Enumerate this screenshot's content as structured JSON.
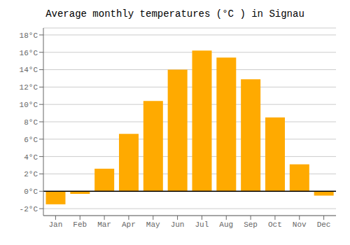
{
  "chart_data": {
    "type": "bar",
    "title": "Average monthly temperatures (°C ) in Signau",
    "categories": [
      "Jan",
      "Feb",
      "Mar",
      "Apr",
      "May",
      "Jun",
      "Jul",
      "Aug",
      "Sep",
      "Oct",
      "Nov",
      "Dec"
    ],
    "values": [
      -1.5,
      -0.3,
      2.6,
      6.6,
      10.4,
      14.0,
      16.2,
      15.4,
      12.9,
      8.5,
      3.1,
      -0.5
    ],
    "color": "#FFAA00",
    "ylim": [
      -2.8,
      18.8
    ],
    "yticks": [
      {
        "value": -2,
        "label": "-2°C"
      },
      {
        "value": 0,
        "label": "0°C"
      },
      {
        "value": 2,
        "label": "2°C"
      },
      {
        "value": 4,
        "label": "4°C"
      },
      {
        "value": 6,
        "label": "6°C"
      },
      {
        "value": 8,
        "label": "8°C"
      },
      {
        "value": 10,
        "label": "10°C"
      },
      {
        "value": 12,
        "label": "12°C"
      },
      {
        "value": 14,
        "label": "14°C"
      },
      {
        "value": 16,
        "label": "16°C"
      },
      {
        "value": 18,
        "label": "18°C"
      }
    ],
    "grid": true
  }
}
